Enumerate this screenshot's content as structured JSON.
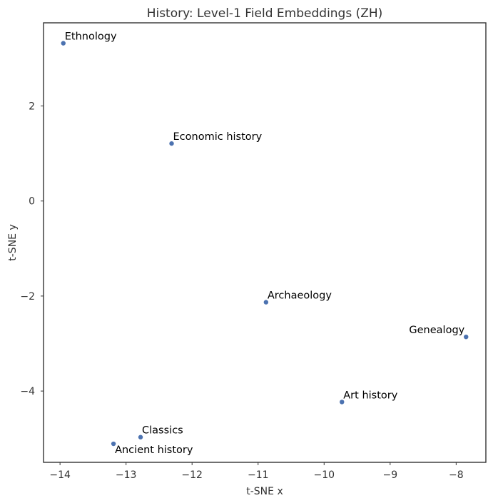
{
  "chart_data": {
    "type": "scatter",
    "title": "History: Level-1 Field Embeddings (ZH)",
    "xlabel": "t-SNE x",
    "ylabel": "t-SNE y",
    "xlim": [
      -14.25,
      -7.55
    ],
    "ylim": [
      -5.5,
      3.75
    ],
    "xticks": [
      -14,
      -13,
      -12,
      -11,
      -10,
      -9,
      -8
    ],
    "yticks": [
      -4,
      -2,
      0,
      2
    ],
    "grid": false,
    "point_color": "#4c72b0",
    "points": [
      {
        "label": "Ethnology",
        "x": -13.95,
        "y": 3.32
      },
      {
        "label": "Economic history",
        "x": -12.31,
        "y": 1.21
      },
      {
        "label": "Archaeology",
        "x": -10.88,
        "y": -2.13
      },
      {
        "label": "Genealogy",
        "x": -7.85,
        "y": -2.86
      },
      {
        "label": "Art history",
        "x": -9.73,
        "y": -4.23
      },
      {
        "label": "Classics",
        "x": -12.78,
        "y": -4.97
      },
      {
        "label": "Ancient history",
        "x": -13.19,
        "y": -5.11
      }
    ]
  }
}
